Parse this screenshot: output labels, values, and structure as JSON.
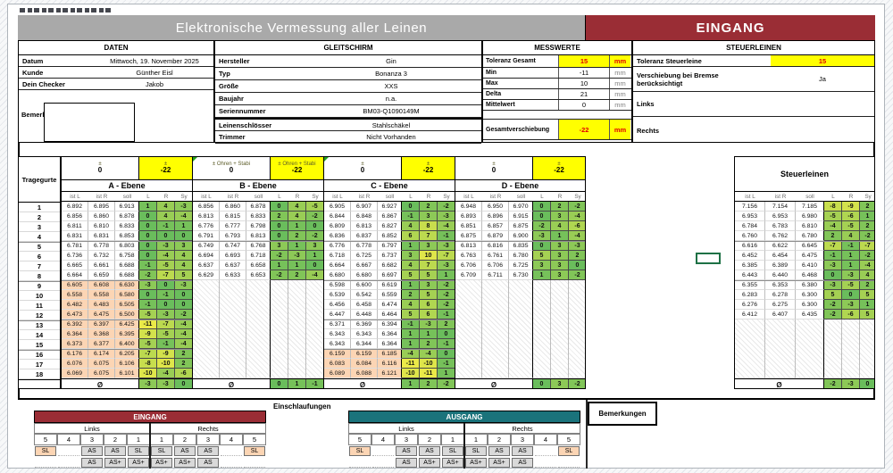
{
  "banner": {
    "title": "Elektronische Vermessung aller Leinen",
    "mode": "EINGANG"
  },
  "colors": {
    "banner_gray": "#a9a9a9",
    "accent_red": "#9a2d35",
    "teal": "#1a737b",
    "highlight_yellow": "#ffff00",
    "alert_text": "#e00000",
    "peach": "#fcd5b4",
    "scale_green": "#6abd5c",
    "scale_yellow": "#ebea48",
    "selection_green": "#1e7145"
  },
  "sections": {
    "daten": {
      "header": "DATEN",
      "rows": [
        {
          "label": "Datum",
          "value": "Mittwoch, 19. November 2025"
        },
        {
          "label": "Kunde",
          "value": "Günther Eisl"
        },
        {
          "label": "Dein Checker",
          "value": "Jakob"
        }
      ],
      "bemerkung_label": "Bemerkung:"
    },
    "gleitschirm": {
      "header": "GLEITSCHIRM",
      "rows": [
        {
          "label": "Hersteller",
          "value": "Gin"
        },
        {
          "label": "Typ",
          "value": "Bonanza 3"
        },
        {
          "label": "Größe",
          "value": "XXS"
        },
        {
          "label": "Baujahr",
          "value": "n.a."
        },
        {
          "label": "Seriennummer",
          "value": "BM03-Q1090149M"
        },
        {
          "label": "Leinenschlösser",
          "value": "Stahlschäkel"
        },
        {
          "label": "Trimmer",
          "value": "Nicht Vorhanden"
        }
      ]
    },
    "messwerte": {
      "header": "MESSWERTE",
      "rows": [
        {
          "label": "Toleranz Gesamt",
          "value": "15",
          "unit": "mm",
          "highlight": true
        },
        {
          "label": "Min",
          "value": "-11",
          "unit": "mm",
          "highlight": false
        },
        {
          "label": "Max",
          "value": "10",
          "unit": "mm",
          "highlight": false
        },
        {
          "label": "Delta",
          "value": "21",
          "unit": "mm",
          "highlight": false
        },
        {
          "label": "Mittelwert",
          "value": "0",
          "unit": "mm",
          "highlight": false
        }
      ],
      "gesamt": {
        "label": "Gesamtverschiebung",
        "value": "-22",
        "unit": "mm",
        "highlight": true
      }
    },
    "steuerleinen": {
      "header": "STEUERLEINEN",
      "rows": [
        {
          "label": "Toleranz Steuerleine",
          "value": "15",
          "highlight": true
        },
        {
          "label": "Verschiebung bei Bremse\nberücksichtigt",
          "value": "Ja",
          "highlight": false
        },
        {
          "label": "Links",
          "value": "",
          "highlight": false
        },
        {
          "label": "Rechts",
          "value": "",
          "highlight": false
        }
      ]
    }
  },
  "table": {
    "row_label": "Tragegurte",
    "avg_symbol": "Ø",
    "col_headers": [
      "ist L",
      "ist R",
      "soll",
      "L",
      "R",
      "Sy"
    ],
    "groups": [
      {
        "name": "A - Ebene",
        "adj_label": "±",
        "adj_zero": "0",
        "adj_shift": "-22",
        "marker": false,
        "peach_from": 9,
        "empty_rows": 0,
        "rows": [
          [
            "6.892",
            "6.895",
            "6.913",
            1,
            4,
            -3
          ],
          [
            "6.856",
            "6.860",
            "6.878",
            0,
            4,
            -4
          ],
          [
            "6.811",
            "6.810",
            "6.833",
            0,
            -1,
            1
          ],
          [
            "6.831",
            "6.831",
            "6.853",
            0,
            0,
            0
          ],
          [
            "6.781",
            "6.778",
            "6.803",
            0,
            -3,
            3
          ],
          [
            "6.736",
            "6.732",
            "6.758",
            0,
            -4,
            4
          ],
          [
            "6.665",
            "6.661",
            "6.688",
            -1,
            -5,
            4
          ],
          [
            "6.664",
            "6.659",
            "6.688",
            -2,
            -7,
            5
          ],
          [
            "6.605",
            "6.608",
            "6.630",
            -3,
            0,
            -3
          ],
          [
            "6.558",
            "6.558",
            "6.580",
            0,
            -1,
            0
          ],
          [
            "6.482",
            "6.483",
            "6.505",
            -1,
            0,
            0
          ],
          [
            "6.473",
            "6.475",
            "6.500",
            -5,
            -3,
            -2
          ],
          [
            "6.392",
            "6.397",
            "6.425",
            -11,
            -7,
            -4
          ],
          [
            "6.364",
            "6.368",
            "6.395",
            -9,
            -5,
            -4
          ],
          [
            "6.373",
            "6.377",
            "6.400",
            -5,
            -1,
            -4
          ],
          [
            "6.176",
            "6.174",
            "6.205",
            -7,
            -9,
            2
          ],
          [
            "6.076",
            "6.075",
            "6.106",
            -8,
            -10,
            2
          ],
          [
            "6.069",
            "6.075",
            "6.101",
            -10,
            -4,
            -6
          ]
        ],
        "avg": [
          -3,
          -3,
          0
        ]
      },
      {
        "name": "B - Ebene",
        "adj_label": "± Ohren + Stabi",
        "adj_zero": "0",
        "adj_shift": "-22",
        "marker": true,
        "peach_from": 0,
        "empty_rows": 10,
        "rows": [
          [
            "6.856",
            "6.860",
            "6.878",
            0,
            4,
            -5
          ],
          [
            "6.813",
            "6.815",
            "6.833",
            2,
            4,
            -2
          ],
          [
            "6.776",
            "6.777",
            "6.798",
            0,
            1,
            0
          ],
          [
            "6.791",
            "6.793",
            "6.813",
            0,
            2,
            -2
          ],
          [
            "6.749",
            "6.747",
            "6.768",
            3,
            1,
            3
          ],
          [
            "6.694",
            "6.693",
            "6.718",
            -2,
            -3,
            1
          ],
          [
            "6.637",
            "6.637",
            "6.658",
            1,
            1,
            0
          ],
          [
            "6.629",
            "6.633",
            "6.653",
            -2,
            2,
            -4
          ]
        ],
        "avg": [
          0,
          1,
          -1
        ]
      },
      {
        "name": "C - Ebene",
        "adj_label": "±",
        "adj_zero": "0",
        "adj_shift": "-22",
        "marker": true,
        "peach_from": 16,
        "empty_rows": 0,
        "rows": [
          [
            "6.905",
            "6.907",
            "6.927",
            0,
            2,
            -2
          ],
          [
            "6.844",
            "6.848",
            "6.867",
            -1,
            3,
            -3
          ],
          [
            "6.809",
            "6.813",
            "6.827",
            4,
            8,
            -4
          ],
          [
            "6.836",
            "6.837",
            "6.852",
            6,
            7,
            -1
          ],
          [
            "6.776",
            "6.778",
            "6.797",
            1,
            3,
            -3
          ],
          [
            "6.718",
            "6.725",
            "6.737",
            3,
            10,
            -7
          ],
          [
            "6.664",
            "6.667",
            "6.682",
            4,
            7,
            -3
          ],
          [
            "6.680",
            "6.680",
            "6.697",
            5,
            5,
            1
          ],
          [
            "6.598",
            "6.600",
            "6.619",
            1,
            3,
            -2
          ],
          [
            "6.539",
            "6.542",
            "6.559",
            2,
            5,
            -2
          ],
          [
            "6.456",
            "6.458",
            "6.474",
            4,
            6,
            -2
          ],
          [
            "6.447",
            "6.448",
            "6.464",
            5,
            6,
            -1
          ],
          [
            "6.371",
            "6.369",
            "6.394",
            -1,
            -3,
            2
          ],
          [
            "6.343",
            "6.343",
            "6.364",
            1,
            1,
            0
          ],
          [
            "6.343",
            "6.344",
            "6.364",
            1,
            2,
            -1
          ],
          [
            "6.159",
            "6.159",
            "6.185",
            -4,
            -4,
            0
          ],
          [
            "6.083",
            "6.084",
            "6.116",
            -11,
            -10,
            -1
          ],
          [
            "6.089",
            "6.088",
            "6.121",
            -10,
            -11,
            1
          ]
        ],
        "avg": [
          1,
          2,
          -2
        ]
      },
      {
        "name": "D - Ebene",
        "adj_label": "±",
        "adj_zero": "0",
        "adj_shift": "-22",
        "marker": false,
        "peach_from": 0,
        "empty_rows": 10,
        "rows": [
          [
            "6.948",
            "6.950",
            "6.970",
            0,
            2,
            -2
          ],
          [
            "6.893",
            "6.896",
            "6.915",
            0,
            3,
            -4
          ],
          [
            "6.851",
            "6.857",
            "6.875",
            -2,
            4,
            -6
          ],
          [
            "6.875",
            "6.879",
            "6.900",
            -3,
            1,
            -4
          ],
          [
            "6.813",
            "6.816",
            "6.835",
            0,
            3,
            -3
          ],
          [
            "6.763",
            "6.761",
            "6.780",
            5,
            3,
            2
          ],
          [
            "6.706",
            "6.706",
            "6.725",
            3,
            3,
            0
          ],
          [
            "6.709",
            "6.711",
            "6.730",
            1,
            3,
            -2
          ]
        ],
        "avg": [
          0,
          3,
          -2
        ]
      }
    ],
    "steuer": {
      "name": "Steuerleinen",
      "peach_from": 0,
      "empty_rows": 6,
      "rows": [
        [
          "7.156",
          "7.154",
          "7.185",
          -8,
          -9,
          2
        ],
        [
          "6.953",
          "6.953",
          "6.980",
          -5,
          -6,
          1
        ],
        [
          "6.784",
          "6.783",
          "6.810",
          -4,
          -5,
          2
        ],
        [
          "6.760",
          "6.762",
          "6.780",
          2,
          4,
          -2
        ],
        [
          "6.616",
          "6.622",
          "6.645",
          -7,
          -1,
          -7
        ],
        [
          "6.452",
          "6.454",
          "6.475",
          -1,
          1,
          -2
        ],
        [
          "6.385",
          "6.389",
          "6.410",
          -3,
          1,
          -4
        ],
        [
          "6.443",
          "6.440",
          "6.468",
          0,
          -3,
          4
        ],
        [
          "6.355",
          "6.353",
          "6.380",
          -3,
          -5,
          2
        ],
        [
          "6.283",
          "6.278",
          "6.300",
          5,
          0,
          5
        ],
        [
          "6.276",
          "6.275",
          "6.300",
          -2,
          -3,
          1
        ],
        [
          "6.412",
          "6.407",
          "6.435",
          -2,
          -6,
          5
        ]
      ],
      "avg": [
        -2,
        -3,
        0
      ]
    }
  },
  "bottom": {
    "einschlaufungen_label": "Einschlaufungen",
    "bemerkungen_label": "Bemerkungen",
    "links_label": "Links",
    "rechts_label": "Rechts",
    "tables": [
      {
        "title": "EINGANG",
        "header_color": "#9a2d35",
        "numbers": [
          "5",
          "4",
          "3",
          "2",
          "1",
          "1",
          "2",
          "3",
          "4",
          "5"
        ],
        "rows": [
          [
            {
              "t": "SL",
              "p": true
            },
            {
              "t": ""
            },
            {
              "t": "AS"
            },
            {
              "t": "AS"
            },
            {
              "t": "SL"
            },
            {
              "t": "SL"
            },
            {
              "t": "AS"
            },
            {
              "t": "AS"
            },
            {
              "t": ""
            },
            {
              "t": "SL",
              "p": true
            }
          ],
          [
            {
              "t": ""
            },
            {
              "t": ""
            },
            {
              "t": "AS"
            },
            {
              "t": "AS+"
            },
            {
              "t": "AS+"
            },
            {
              "t": "AS+"
            },
            {
              "t": "AS+"
            },
            {
              "t": "AS"
            },
            {
              "t": ""
            },
            {
              "t": ""
            }
          ]
        ]
      },
      {
        "title": "AUSGANG",
        "header_color": "#1a737b",
        "numbers": [
          "5",
          "4",
          "3",
          "2",
          "1",
          "1",
          "2",
          "3",
          "4",
          "5"
        ],
        "rows": [
          [
            {
              "t": "SL",
              "p": true
            },
            {
              "t": ""
            },
            {
              "t": "AS"
            },
            {
              "t": "AS"
            },
            {
              "t": "SL"
            },
            {
              "t": "SL"
            },
            {
              "t": "AS"
            },
            {
              "t": "AS"
            },
            {
              "t": ""
            },
            {
              "t": "SL",
              "p": true
            }
          ],
          [
            {
              "t": ""
            },
            {
              "t": ""
            },
            {
              "t": "AS"
            },
            {
              "t": "AS+"
            },
            {
              "t": "AS+"
            },
            {
              "t": "AS+"
            },
            {
              "t": "AS+"
            },
            {
              "t": "AS"
            },
            {
              "t": ""
            },
            {
              "t": ""
            }
          ]
        ]
      }
    ]
  }
}
